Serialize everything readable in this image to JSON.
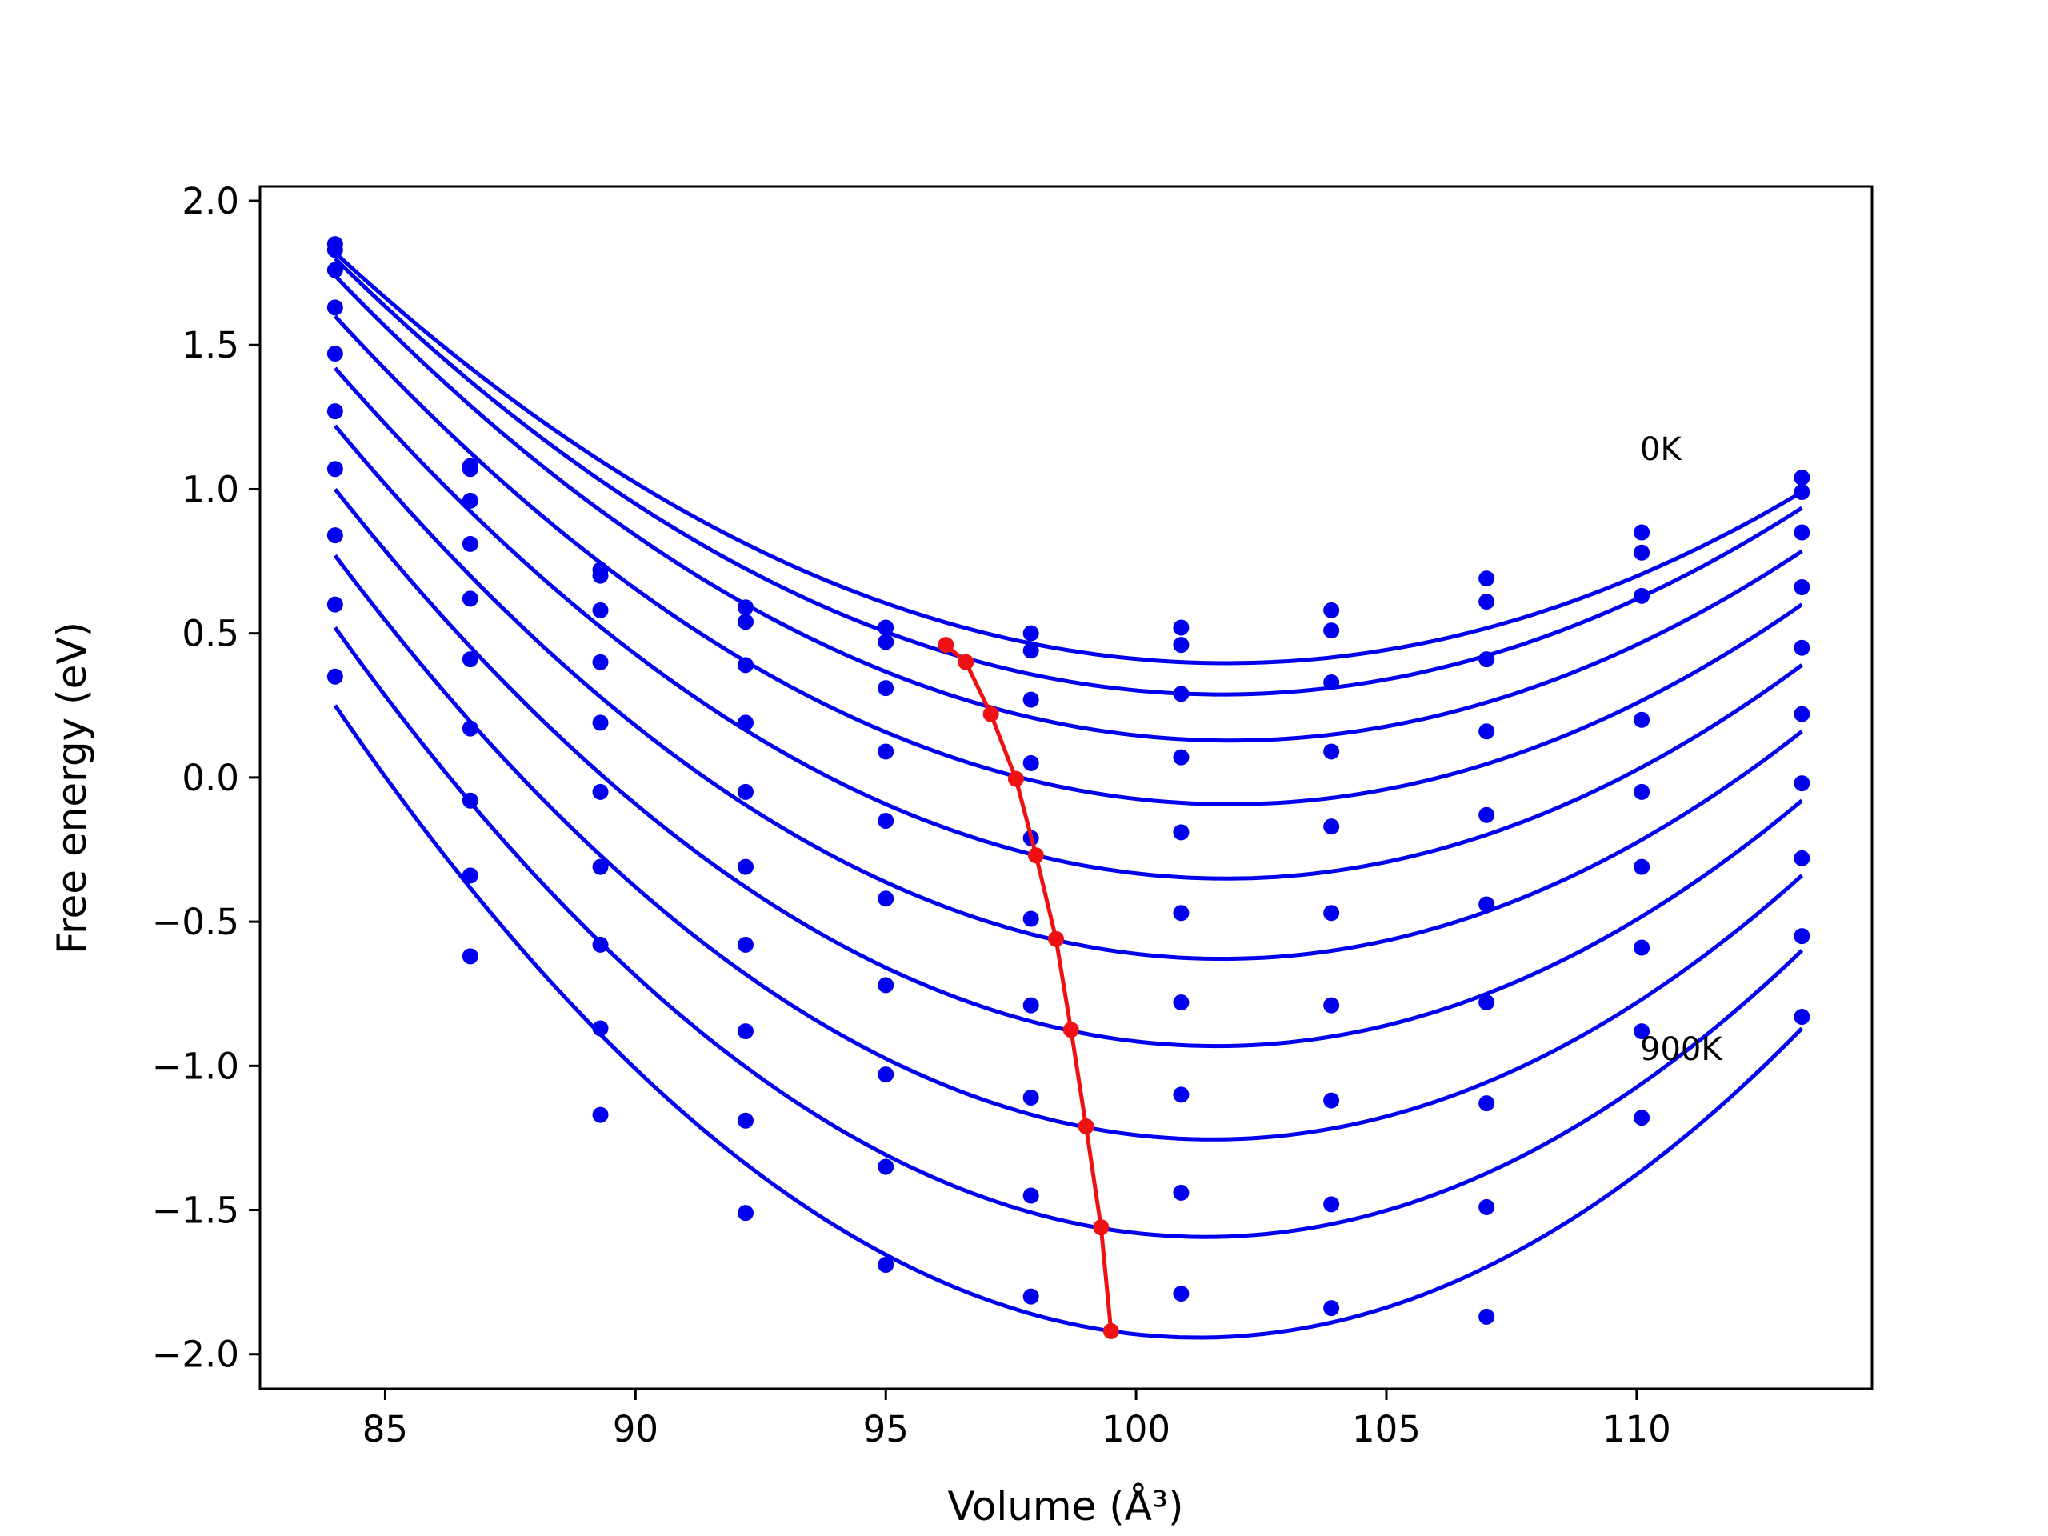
{
  "chart_data": {
    "type": "line",
    "xlabel": "Volume (Å³)",
    "ylabel": "Free energy (eV)",
    "xlim": [
      82.5,
      114.7
    ],
    "ylim": [
      -2.12,
      2.05
    ],
    "xticks": [
      85,
      90,
      95,
      100,
      105,
      110
    ],
    "yticks": [
      2.0,
      1.5,
      1.0,
      0.5,
      0.0,
      -0.5,
      -1.0,
      -1.5,
      -2.0
    ],
    "xtick_labels": [
      "85",
      "90",
      "95",
      "100",
      "105",
      "110"
    ],
    "ytick_labels": [
      "2.0",
      "1.5",
      "1.0",
      "0.5",
      "0.0",
      "−0.5",
      "−1.0",
      "−1.5",
      "−2.0"
    ],
    "grid": false,
    "colors": {
      "series": "#0000ee",
      "minimum_path": "#ee1111"
    },
    "annotations": [
      {
        "text": "0K",
        "x": 110.0,
        "y": 1.12
      },
      {
        "text": "900K",
        "x": 110.0,
        "y": -0.95
      }
    ],
    "data_x": [
      84.0,
      86.7,
      89.3,
      92.2,
      95.0,
      97.9,
      100.9,
      103.9,
      107.0,
      110.1,
      113.3
    ],
    "series": [
      {
        "label": "0K",
        "points_y": [
          1.85,
          1.08,
          0.72,
          0.59,
          0.52,
          0.5,
          0.52,
          0.58,
          0.69,
          0.85,
          1.04
        ],
        "fit_x": [
          84.0,
          97.9,
          113.3
        ],
        "fit_y": [
          1.82,
          0.465,
          0.99
        ]
      },
      {
        "label": "",
        "points_y": [
          1.83,
          1.07,
          0.7,
          0.54,
          0.47,
          0.44,
          0.46,
          0.51,
          0.61,
          0.78,
          0.99
        ],
        "fit_x": [
          84.0,
          97.0,
          113.3
        ],
        "fit_y": [
          1.8,
          0.395,
          0.935
        ]
      },
      {
        "label": "",
        "points_y": [
          1.76,
          0.96,
          0.58,
          0.39,
          0.31,
          0.27,
          0.29,
          0.33,
          0.41,
          0.63,
          0.85
        ],
        "fit_x": [
          84.0,
          97.5,
          113.3
        ],
        "fit_y": [
          1.74,
          0.225,
          0.785
        ]
      },
      {
        "label": "",
        "points_y": [
          1.63,
          0.81,
          0.4,
          0.19,
          0.09,
          0.05,
          0.07,
          0.09,
          0.16,
          0.2,
          0.66
        ],
        "fit_x": [
          84.0,
          97.8,
          113.3
        ],
        "fit_y": [
          1.6,
          -0.005,
          0.6
        ]
      },
      {
        "label": "",
        "points_y": [
          1.47,
          0.62,
          0.19,
          -0.05,
          -0.15,
          -0.21,
          -0.19,
          -0.17,
          -0.13,
          -0.05,
          0.45
        ],
        "fit_x": [
          84.0,
          98.0,
          113.3
        ],
        "fit_y": [
          1.42,
          -0.27,
          0.39
        ]
      },
      {
        "label": "",
        "points_y": [
          1.27,
          0.41,
          -0.05,
          -0.31,
          -0.42,
          -0.49,
          -0.47,
          -0.47,
          -0.44,
          -0.31,
          0.22
        ],
        "fit_x": [
          84.0,
          98.3,
          113.3
        ],
        "fit_y": [
          1.22,
          -0.56,
          0.16
        ]
      },
      {
        "label": "",
        "points_y": [
          1.07,
          0.17,
          -0.31,
          -0.58,
          -0.72,
          -0.79,
          -0.78,
          -0.79,
          -0.78,
          -0.59,
          -0.02
        ],
        "fit_x": [
          84.0,
          98.6,
          113.3
        ],
        "fit_y": [
          1.0,
          -0.875,
          -0.08
        ]
      },
      {
        "label": "",
        "points_y": [
          0.84,
          -0.08,
          -0.58,
          -0.88,
          -1.03,
          -1.11,
          -1.1,
          -1.12,
          -1.13,
          -0.88,
          -0.28
        ],
        "fit_x": [
          84.0,
          98.9,
          113.3
        ],
        "fit_y": [
          0.77,
          -1.21,
          -0.34
        ]
      },
      {
        "label": "",
        "points_y": [
          0.6,
          -0.34,
          -0.87,
          -1.19,
          -1.35,
          -1.45,
          -1.44,
          -1.48,
          -1.49,
          -1.18,
          -0.55
        ],
        "fit_x": [
          84.0,
          99.2,
          113.3
        ],
        "fit_y": [
          0.52,
          -1.56,
          -0.6
        ]
      },
      {
        "label": "900K",
        "points_y": [
          0.35,
          -0.62,
          -1.17,
          -1.51,
          -1.69,
          -1.8,
          -1.79,
          -1.84,
          -1.87,
          null,
          -0.83
        ],
        "fit_x": [
          84.0,
          99.5,
          113.3
        ],
        "fit_y": [
          0.25,
          -1.92,
          -0.87
        ]
      }
    ],
    "minimum_path": {
      "x": [
        96.2,
        96.6,
        97.1,
        97.6,
        98.0,
        98.4,
        98.7,
        99.0,
        99.3,
        99.5
      ],
      "y": [
        0.46,
        0.4,
        0.22,
        -0.005,
        -0.27,
        -0.56,
        -0.875,
        -1.21,
        -1.56,
        -1.92
      ]
    }
  }
}
